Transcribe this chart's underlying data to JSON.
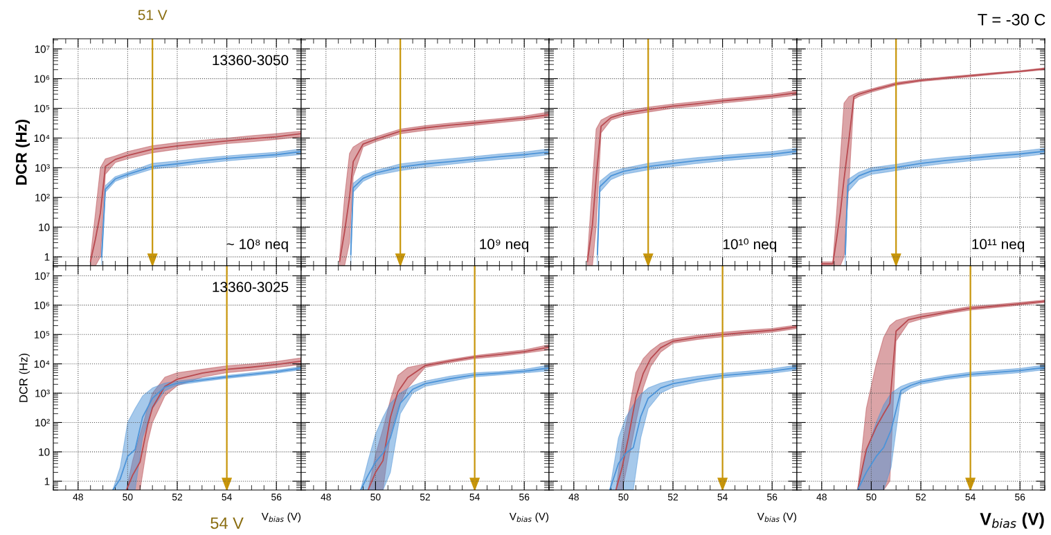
{
  "chart_data": [
    {
      "type": "line",
      "ylabel": "DCR (Hz)",
      "tick_labels": "y",
      "log": true,
      "grid": true,
      "xlim": [
        47,
        57
      ],
      "xticks": [
        48,
        50,
        52,
        54,
        56
      ],
      "ylim": [
        0.5,
        22000000
      ],
      "yticks": [
        {
          "value": 1,
          "label": "1"
        },
        {
          "value": 10,
          "label": "10"
        },
        {
          "value": 100,
          "label": "10²"
        },
        {
          "value": 1000,
          "label": "10³"
        },
        {
          "value": 10000,
          "label": "10⁴"
        },
        {
          "value": 100000,
          "label": "10⁵"
        },
        {
          "value": 1000000,
          "label": "10⁶"
        },
        {
          "value": 10000000,
          "label": "10⁷"
        }
      ],
      "annotations": [
        "13360-3050",
        "~ 10⁸ neq"
      ],
      "ref_lines": [
        {
          "axis": "x",
          "value": 51,
          "label": "51 V",
          "color": "#c8960a"
        }
      ],
      "series": [
        {
          "color": "#b84a50",
          "x": [
            48.5,
            48.7,
            48.9,
            49.1,
            49.5,
            50,
            51,
            52,
            53,
            54,
            55,
            56,
            57
          ],
          "values": [
            0.7,
            4,
            30,
            1100,
            1900,
            2600,
            4200,
            5400,
            6600,
            8000,
            9500,
            11000,
            14000
          ],
          "lower": [
            0.5,
            0.5,
            1,
            600,
            1500,
            2000,
            3200,
            4200,
            5200,
            6500,
            7500,
            9000,
            11000
          ],
          "upper": [
            1,
            30,
            1000,
            2000,
            2500,
            3500,
            5500,
            7000,
            8500,
            10000,
            12000,
            14000,
            17000
          ]
        },
        {
          "color": "#4d94d8",
          "x": [
            48.95,
            49.1,
            49.5,
            50,
            51,
            52,
            53,
            54,
            55,
            56,
            57
          ],
          "values": [
            1,
            190,
            420,
            600,
            1100,
            1350,
            1700,
            2050,
            2400,
            2750,
            3500
          ],
          "lower": [
            0.5,
            150,
            350,
            500,
            900,
            1100,
            1400,
            1700,
            2000,
            2300,
            2800
          ],
          "upper": [
            2,
            250,
            500,
            700,
            1400,
            1700,
            2100,
            2500,
            2900,
            3300,
            4300
          ]
        }
      ]
    },
    {
      "type": "line",
      "tick_labels": false,
      "log": true,
      "grid": true,
      "xlim": [
        47,
        57
      ],
      "xticks": [
        48,
        50,
        52,
        54,
        56
      ],
      "ylim": [
        0.5,
        22000000
      ],
      "yticks": [
        {
          "value": 1,
          "label": null
        },
        {
          "value": 10,
          "label": null
        },
        {
          "value": 100,
          "label": null
        },
        {
          "value": 1000,
          "label": null
        },
        {
          "value": 10000,
          "label": null
        },
        {
          "value": 100000,
          "label": null
        },
        {
          "value": 1000000,
          "label": null
        },
        {
          "value": 10000000,
          "label": null
        }
      ],
      "annotations": [
        "10⁹ neq"
      ],
      "ref_lines": [
        {
          "axis": "x",
          "value": 51,
          "color": "#c8960a"
        }
      ],
      "series": [
        {
          "color": "#b84a50",
          "x": [
            48.55,
            48.75,
            48.95,
            49.1,
            49.5,
            50,
            51,
            52,
            53,
            54,
            55,
            56,
            57
          ],
          "values": [
            0.7,
            7,
            100,
            1600,
            6300,
            9000,
            17000,
            22000,
            27000,
            32000,
            39000,
            47000,
            61000
          ],
          "lower": [
            0.5,
            0.5,
            3,
            500,
            5000,
            7500,
            14000,
            18000,
            22000,
            27000,
            33000,
            40000,
            50000
          ],
          "upper": [
            1,
            100,
            3000,
            5000,
            8000,
            11000,
            20000,
            26000,
            32000,
            38000,
            45000,
            55000,
            75000
          ]
        },
        {
          "color": "#4d94d8",
          "x": [
            49.0,
            49.1,
            49.5,
            50,
            51,
            52,
            53,
            54,
            55,
            56,
            57
          ],
          "values": [
            1.2,
            210,
            440,
            660,
            1050,
            1350,
            1600,
            1950,
            2350,
            2750,
            3400
          ],
          "lower": [
            0.5,
            150,
            350,
            550,
            800,
            1050,
            1300,
            1600,
            1900,
            2200,
            2750
          ],
          "upper": [
            3,
            300,
            550,
            800,
            1350,
            1700,
            2000,
            2400,
            2900,
            3400,
            4300
          ]
        }
      ]
    },
    {
      "type": "line",
      "tick_labels": false,
      "log": true,
      "grid": true,
      "xlim": [
        47,
        57
      ],
      "xticks": [
        48,
        50,
        52,
        54,
        56
      ],
      "ylim": [
        0.5,
        22000000
      ],
      "yticks": [
        {
          "value": 1,
          "label": null
        },
        {
          "value": 10,
          "label": null
        },
        {
          "value": 100,
          "label": null
        },
        {
          "value": 1000,
          "label": null
        },
        {
          "value": 10000,
          "label": null
        },
        {
          "value": 100000,
          "label": null
        },
        {
          "value": 1000000,
          "label": null
        },
        {
          "value": 10000000,
          "label": null
        }
      ],
      "annotations": [
        "10¹⁰ neq"
      ],
      "ref_lines": [
        {
          "axis": "x",
          "value": 51,
          "color": "#c8960a"
        }
      ],
      "series": [
        {
          "color": "#b84a50",
          "x": [
            48.55,
            48.75,
            48.9,
            49.1,
            49.5,
            50,
            51,
            52,
            53,
            54,
            55,
            56,
            57
          ],
          "values": [
            0.7,
            12,
            450,
            25000,
            49000,
            66000,
            91000,
            118000,
            143000,
            178000,
            212000,
            257000,
            335000
          ],
          "lower": [
            0.5,
            0.5,
            10,
            15000,
            40000,
            55000,
            75000,
            100000,
            120000,
            150000,
            180000,
            220000,
            280000
          ],
          "upper": [
            1,
            300,
            20000,
            40000,
            60000,
            80000,
            110000,
            140000,
            170000,
            210000,
            250000,
            300000,
            400000
          ]
        },
        {
          "color": "#4d94d8",
          "x": [
            48.95,
            49.05,
            49.5,
            50,
            51,
            52,
            53,
            54,
            55,
            56,
            57
          ],
          "values": [
            1.2,
            230,
            530,
            750,
            1100,
            1400,
            1750,
            2100,
            2450,
            2850,
            3600
          ],
          "lower": [
            0.5,
            150,
            400,
            600,
            850,
            1100,
            1400,
            1700,
            2000,
            2300,
            2900
          ],
          "upper": [
            3,
            350,
            700,
            950,
            1400,
            1800,
            2200,
            2600,
            3000,
            3500,
            4500
          ]
        }
      ]
    },
    {
      "type": "line",
      "tick_labels": false,
      "log": true,
      "grid": true,
      "xlim": [
        47,
        57
      ],
      "xticks": [
        48,
        50,
        52,
        54,
        56
      ],
      "ylim": [
        0.5,
        22000000
      ],
      "yticks": [
        {
          "value": 1,
          "label": null
        },
        {
          "value": 10,
          "label": null
        },
        {
          "value": 100,
          "label": null
        },
        {
          "value": 1000,
          "label": null
        },
        {
          "value": 10000,
          "label": null
        },
        {
          "value": 100000,
          "label": null
        },
        {
          "value": 1000000,
          "label": null
        },
        {
          "value": 10000000,
          "label": null
        }
      ],
      "annotations": [
        "10¹¹ neq",
        "T = -30 C"
      ],
      "ref_lines": [
        {
          "axis": "x",
          "value": 51,
          "color": "#c8960a"
        }
      ],
      "series": [
        {
          "color": "#b84a50",
          "x": [
            48.0,
            48.45,
            48.6,
            48.75,
            48.9,
            49.1,
            49.3,
            49.5,
            50,
            51,
            52,
            53,
            54,
            55,
            56,
            57
          ],
          "values": [
            0.58,
            0.58,
            4,
            30,
            400,
            9000,
            245000,
            300000,
            400000,
            670000,
            870000,
            1050000,
            1250000,
            1500000,
            1750000,
            2150000
          ],
          "lower": [
            0.5,
            0.5,
            0.5,
            0.5,
            1,
            300,
            200000,
            250000,
            350000,
            600000,
            800000,
            950000,
            1150000,
            1400000,
            1650000,
            2000000
          ],
          "upper": [
            0.68,
            0.68,
            30,
            2000,
            150000,
            250000,
            300000,
            350000,
            450000,
            750000,
            950000,
            1150000,
            1350000,
            1600000,
            1850000,
            2300000
          ]
        },
        {
          "color": "#4d94d8",
          "x": [
            48.95,
            49.05,
            49.5,
            50,
            51,
            52,
            53,
            54,
            55,
            56,
            57
          ],
          "values": [
            1.2,
            250,
            530,
            770,
            1020,
            1400,
            1750,
            2100,
            2500,
            2900,
            3600
          ],
          "lower": [
            0.5,
            150,
            400,
            600,
            800,
            1100,
            1400,
            1700,
            2000,
            2300,
            2900
          ],
          "upper": [
            3,
            400,
            700,
            1000,
            1300,
            1800,
            2200,
            2600,
            3100,
            3600,
            4500
          ]
        }
      ]
    },
    {
      "type": "line",
      "ylabel": "DCR (Hz)",
      "xlabel": "V$_{bias}$ (V)",
      "log": true,
      "grid": true,
      "xlim": [
        47,
        57
      ],
      "xticks": [
        48,
        50,
        52,
        54,
        56
      ],
      "ylim": [
        0.5,
        22000000
      ],
      "yticks": [
        {
          "value": 1,
          "label": "1"
        },
        {
          "value": 10,
          "label": "10"
        },
        {
          "value": 100,
          "label": "10²"
        },
        {
          "value": 1000,
          "label": "10³"
        },
        {
          "value": 10000,
          "label": "10⁴"
        },
        {
          "value": 100000,
          "label": "10⁵"
        },
        {
          "value": 1000000,
          "label": "10⁶"
        },
        {
          "value": 10000000,
          "label": "10⁷"
        }
      ],
      "annotations": [
        "13360-3025"
      ],
      "ref_lines": [
        {
          "axis": "x",
          "value": 54,
          "label": "54 V",
          "color": "#c8960a"
        }
      ],
      "series": [
        {
          "color": "#b84a50",
          "x": [
            49.95,
            50.2,
            50.5,
            50.8,
            51.0,
            51.5,
            52,
            53,
            54,
            55,
            56,
            57
          ],
          "values": [
            0.5,
            1.6,
            4.5,
            80,
            320,
            1700,
            3000,
            4800,
            6500,
            7700,
            9500,
            12300
          ],
          "lower": [
            0.5,
            0.5,
            0.5,
            20,
            100,
            800,
            1800,
            3500,
            5000,
            6000,
            7500,
            9500
          ],
          "upper": [
            0.5,
            5,
            40,
            300,
            1000,
            3500,
            5000,
            6500,
            8500,
            10000,
            12000,
            16000
          ]
        },
        {
          "color": "#4d94d8",
          "x": [
            49.4,
            49.7,
            50.0,
            50.3,
            50.6,
            51.0,
            51.5,
            52,
            53,
            54,
            55,
            56,
            57
          ],
          "values": [
            0.5,
            1.2,
            7,
            12,
            150,
            670,
            1600,
            2200,
            2800,
            3600,
            4400,
            5400,
            7100
          ],
          "lower": [
            0.5,
            0.5,
            0.5,
            0.5,
            30,
            300,
            1200,
            1900,
            2500,
            3200,
            3900,
            4800,
            6300
          ],
          "upper": [
            0.5,
            3,
            100,
            300,
            800,
            1500,
            2200,
            2600,
            3200,
            4000,
            5000,
            6000,
            8000
          ]
        }
      ]
    },
    {
      "type": "line",
      "xlabel": "V$_{bias}$ (V)",
      "tick_labels": "x",
      "log": true,
      "grid": true,
      "xlim": [
        47,
        57
      ],
      "xticks": [
        48,
        50,
        52,
        54,
        56
      ],
      "ylim": [
        0.5,
        22000000
      ],
      "yticks": [
        {
          "value": 1,
          "label": null
        },
        {
          "value": 10,
          "label": null
        },
        {
          "value": 100,
          "label": null
        },
        {
          "value": 1000,
          "label": null
        },
        {
          "value": 10000,
          "label": null
        },
        {
          "value": 100000,
          "label": null
        },
        {
          "value": 1000000,
          "label": null
        },
        {
          "value": 10000000,
          "label": null
        }
      ],
      "ref_lines": [
        {
          "axis": "x",
          "value": 54,
          "color": "#c8960a"
        }
      ],
      "series": [
        {
          "color": "#b84a50",
          "x": [
            49.7,
            50.0,
            50.3,
            50.6,
            50.9,
            51.3,
            52,
            53,
            54,
            55,
            56,
            57
          ],
          "values": [
            0.5,
            2,
            5,
            150,
            1100,
            3400,
            8700,
            12400,
            17000,
            21000,
            26000,
            37000
          ],
          "lower": [
            0.5,
            0.5,
            0.5,
            40,
            300,
            1500,
            7500,
            11000,
            15000,
            18000,
            23000,
            30000
          ],
          "upper": [
            0.5,
            8,
            60,
            600,
            4000,
            7500,
            10000,
            14000,
            19000,
            24000,
            30000,
            45000
          ]
        },
        {
          "color": "#4d94d8",
          "x": [
            49.4,
            49.7,
            50.0,
            50.3,
            50.6,
            51.0,
            51.5,
            52,
            53,
            54,
            55,
            56,
            57
          ],
          "values": [
            0.5,
            1.6,
            4.5,
            9,
            30,
            450,
            1350,
            2100,
            3100,
            4200,
            4800,
            5600,
            7200
          ],
          "lower": [
            0.5,
            0.5,
            0.5,
            0.5,
            2,
            200,
            1000,
            1700,
            2500,
            3600,
            4200,
            4900,
            5800
          ],
          "upper": [
            0.5,
            5,
            40,
            150,
            450,
            1000,
            1800,
            2600,
            3800,
            5000,
            5500,
            6500,
            9000
          ]
        }
      ]
    },
    {
      "type": "line",
      "xlabel": "V$_{bias}$ (V)",
      "tick_labels": "x",
      "log": true,
      "grid": true,
      "xlim": [
        47,
        57
      ],
      "xticks": [
        48,
        50,
        52,
        54,
        56
      ],
      "ylim": [
        0.5,
        22000000
      ],
      "yticks": [
        {
          "value": 1,
          "label": null
        },
        {
          "value": 10,
          "label": null
        },
        {
          "value": 100,
          "label": null
        },
        {
          "value": 1000,
          "label": null
        },
        {
          "value": 10000,
          "label": null
        },
        {
          "value": 100000,
          "label": null
        },
        {
          "value": 1000000,
          "label": null
        },
        {
          "value": 10000000,
          "label": null
        }
      ],
      "ref_lines": [
        {
          "axis": "x",
          "value": 54,
          "color": "#c8960a"
        }
      ],
      "series": [
        {
          "color": "#b84a50",
          "x": [
            49.7,
            49.95,
            50.2,
            50.5,
            50.8,
            51.1,
            51.5,
            52,
            53,
            54,
            55,
            56,
            57
          ],
          "values": [
            0.5,
            3,
            30,
            700,
            4700,
            15000,
            35000,
            59000,
            80000,
            100000,
            118000,
            139000,
            183000
          ],
          "lower": [
            0.5,
            0.5,
            5,
            100,
            1500,
            8000,
            25000,
            50000,
            68000,
            83000,
            100000,
            120000,
            160000
          ],
          "upper": [
            0.5,
            20,
            200,
            5000,
            15000,
            28000,
            50000,
            70000,
            95000,
            120000,
            140000,
            160000,
            210000
          ]
        },
        {
          "color": "#4d94d8",
          "x": [
            49.45,
            49.8,
            50.1,
            50.4,
            50.7,
            51.0,
            51.5,
            52,
            53,
            54,
            55,
            56,
            57
          ],
          "values": [
            0.5,
            4,
            9,
            14,
            160,
            670,
            1500,
            2100,
            3000,
            4000,
            4700,
            5700,
            7400
          ],
          "lower": [
            0.5,
            0.5,
            0.5,
            0.5,
            30,
            300,
            1000,
            1600,
            2400,
            3300,
            4000,
            4800,
            6100
          ],
          "upper": [
            0.5,
            30,
            150,
            400,
            900,
            1500,
            2200,
            2800,
            3800,
            4800,
            5600,
            6800,
            9000
          ]
        }
      ]
    },
    {
      "type": "line",
      "xlabel": "V$_{bias}$ (V)",
      "tick_labels": "x",
      "log": true,
      "grid": true,
      "xlim": [
        47,
        57
      ],
      "xticks": [
        48,
        50,
        52,
        54,
        56
      ],
      "ylim": [
        0.5,
        22000000
      ],
      "yticks": [
        {
          "value": 1,
          "label": null
        },
        {
          "value": 10,
          "label": null
        },
        {
          "value": 100,
          "label": null
        },
        {
          "value": 1000,
          "label": null
        },
        {
          "value": 10000,
          "label": null
        },
        {
          "value": 100000,
          "label": null
        },
        {
          "value": 1000000,
          "label": null
        },
        {
          "value": 10000000,
          "label": null
        }
      ],
      "ref_lines": [
        {
          "axis": "x",
          "value": 54,
          "color": "#c8960a"
        }
      ],
      "series": [
        {
          "color": "#b84a50",
          "x": [
            49.45,
            49.8,
            50.2,
            50.5,
            50.75,
            51.0,
            51.5,
            52,
            53,
            54,
            55,
            56,
            57
          ],
          "values": [
            0.5,
            12,
            70,
            200,
            450,
            130000,
            320000,
            400000,
            570000,
            780000,
            930000,
            1120000,
            1360000
          ],
          "lower": [
            0.5,
            0.5,
            0.5,
            0.5,
            1,
            60000,
            250000,
            330000,
            500000,
            680000,
            820000,
            1000000,
            1230000
          ],
          "upper": [
            0.5,
            300,
            10000,
            80000,
            200000,
            300000,
            400000,
            500000,
            650000,
            900000,
            1050000,
            1250000,
            1500000
          ]
        },
        {
          "color": "#4d94d8",
          "x": [
            49.45,
            49.8,
            50.2,
            50.5,
            50.8,
            51.2,
            51.6,
            52,
            53,
            54,
            55,
            56,
            57
          ],
          "values": [
            0.5,
            2,
            7,
            14,
            55,
            1250,
            1850,
            2400,
            3400,
            4400,
            5100,
            5900,
            7500
          ],
          "lower": [
            0.5,
            0.5,
            0.5,
            0.5,
            3,
            900,
            1500,
            2000,
            2900,
            3700,
            4300,
            5000,
            6300
          ],
          "upper": [
            0.5,
            10,
            100,
            400,
            1000,
            1700,
            2300,
            2800,
            4000,
            5200,
            6000,
            7000,
            9000
          ]
        }
      ]
    }
  ]
}
